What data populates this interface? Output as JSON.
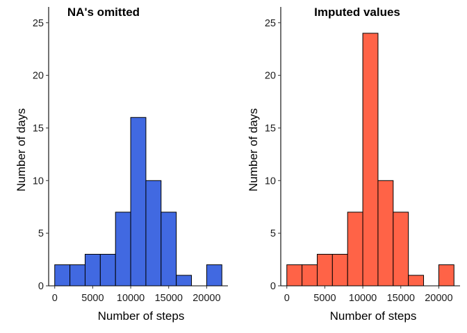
{
  "chart_data": [
    {
      "type": "bar",
      "title": "NA's omitted",
      "xlabel": "Number of steps",
      "ylabel": "Number of days",
      "bin_width": 2000,
      "bin_starts": [
        0,
        2000,
        4000,
        6000,
        8000,
        10000,
        12000,
        14000,
        16000,
        18000,
        20000
      ],
      "values": [
        2,
        2,
        3,
        3,
        7,
        16,
        10,
        7,
        1,
        0,
        2
      ],
      "xlim": [
        -800,
        22800
      ],
      "ylim": [
        0,
        26.5
      ],
      "xticks": [
        0,
        5000,
        10000,
        15000,
        20000
      ],
      "yticks": [
        0,
        5,
        10,
        15,
        20,
        25
      ],
      "color": "#4169e1",
      "grid": false
    },
    {
      "type": "bar",
      "title": "Imputed values",
      "xlabel": "Number of steps",
      "ylabel": "Number of days",
      "bin_width": 2000,
      "bin_starts": [
        0,
        2000,
        4000,
        6000,
        8000,
        10000,
        12000,
        14000,
        16000,
        18000,
        20000
      ],
      "values": [
        2,
        2,
        3,
        3,
        7,
        24,
        10,
        7,
        1,
        0,
        2
      ],
      "xlim": [
        -800,
        22800
      ],
      "ylim": [
        0,
        26.5
      ],
      "xticks": [
        0,
        5000,
        10000,
        15000,
        20000
      ],
      "yticks": [
        0,
        5,
        10,
        15,
        20,
        25
      ],
      "color": "#ff6347",
      "grid": false
    }
  ]
}
